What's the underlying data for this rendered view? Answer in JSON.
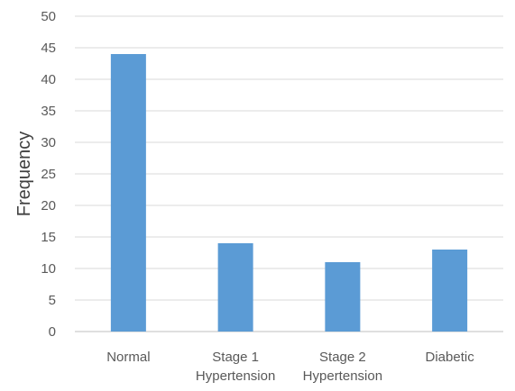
{
  "chart_data": {
    "type": "bar",
    "title": "",
    "xlabel": "",
    "ylabel": "Frequency",
    "categories": [
      [
        "Normal"
      ],
      [
        "Stage 1",
        "Hypertension"
      ],
      [
        "Stage 2",
        "Hypertension"
      ],
      [
        "Diabetic"
      ]
    ],
    "values": [
      44,
      14,
      11,
      13
    ],
    "ylim": [
      0,
      50
    ],
    "yticks": [
      "0",
      "5",
      "10",
      "15",
      "20",
      "25",
      "30",
      "35",
      "40",
      "45",
      "50"
    ],
    "grid": true,
    "legend": "none",
    "colors": {
      "bar": "#5b9bd5",
      "grid": "#d9d9d9",
      "tick_text": "#595959",
      "axis_title": "#404040"
    }
  }
}
